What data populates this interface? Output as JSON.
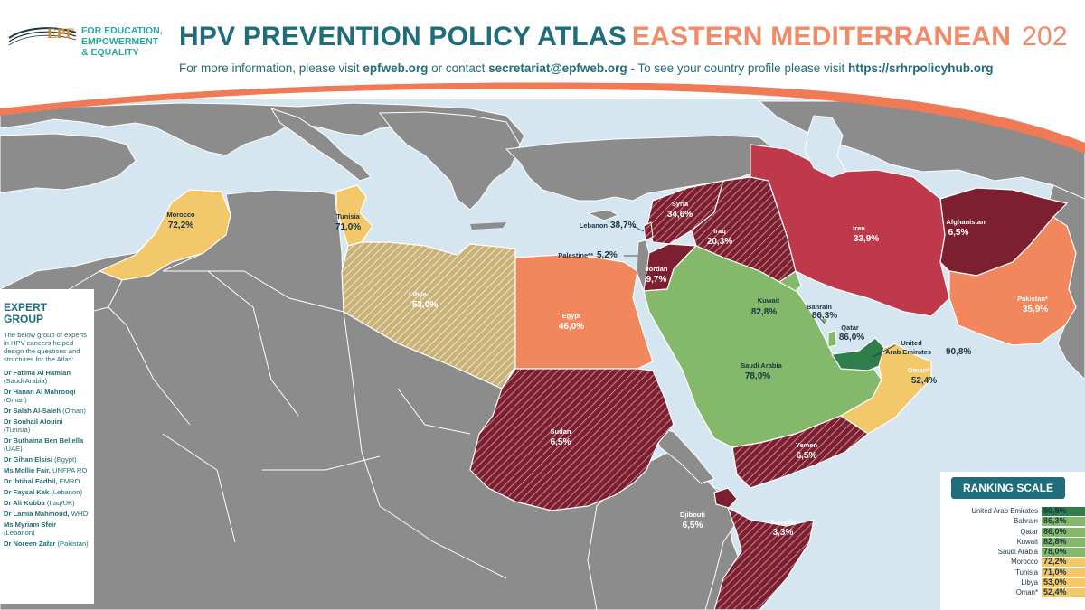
{
  "header": {
    "logo_text": "EPF",
    "tagline": [
      "FOR EDUCATION,",
      "EMPOWERMENT",
      "& EQUALITY"
    ],
    "title_part1": "HPV PREVENTION POLICY ATLAS",
    "title_part2": "EASTERN MEDITERRANEAN",
    "title_year": "202",
    "info_prefix": "For more information, please visit ",
    "info_site": "epfweb.org",
    "info_mid": " or contact ",
    "info_email": "secretariat@epfweb.org",
    "info_mid2": " - To see your country profile please visit ",
    "info_site2": "https://srhrpolicyhub.org"
  },
  "colors": {
    "dark_green": "#2e7d4a",
    "light_green": "#84b86a",
    "yellow": "#f2c86a",
    "orange": "#f2875e",
    "red": "#c0394b",
    "dark_red": "#7c1f30",
    "grey_land": "#8c8c8c",
    "sea": "#d5e6f1",
    "brand_teal": "#1f6d7a",
    "brand_orange": "#f08a68"
  },
  "countries": [
    {
      "name": "Morocco",
      "value": "72,2%"
    },
    {
      "name": "Tunisia",
      "value": "71,0%"
    },
    {
      "name": "Libya",
      "value": "53,0%"
    },
    {
      "name": "Egypt",
      "value": "46,0%"
    },
    {
      "name": "Lebanon",
      "value": "38,7%"
    },
    {
      "name": "Palestine**",
      "value": "5,2%"
    },
    {
      "name": "Syria",
      "value": "34,6%"
    },
    {
      "name": "Iraq",
      "value": "20,3%"
    },
    {
      "name": "Jordan",
      "value": "9,7%"
    },
    {
      "name": "Iran",
      "value": "33,9%"
    },
    {
      "name": "Afghanistan",
      "value": "6,5%"
    },
    {
      "name": "Kuwait",
      "value": "82,8%"
    },
    {
      "name": "Bahrain",
      "value": "86,3%"
    },
    {
      "name": "Qatar",
      "value": "86,0%"
    },
    {
      "name": "United Arab Emirates",
      "value": "90,8%"
    },
    {
      "name": "Saudi Arabia",
      "value": "78,0%"
    },
    {
      "name": "Pakistan*",
      "value": "35,9%"
    },
    {
      "name": "Oman*",
      "value": "52,4%"
    },
    {
      "name": "Sudan",
      "value": "6,5%"
    },
    {
      "name": "Yemen",
      "value": "6,5%"
    },
    {
      "name": "Djibouti",
      "value": "6,5%"
    },
    {
      "name": "Somalia",
      "value": "3,3%"
    }
  ],
  "expert_group": {
    "title_line1": "EXPERT",
    "title_line2": "GROUP",
    "intro": "The below group of experts in HPV cancers helped design the questions and structures for the Atlas:",
    "members": [
      {
        "name": "Dr Fatima Al Hamlan",
        "affil": "(Saudi Arabia)"
      },
      {
        "name": "Dr Hanan Al Mahrooqi",
        "affil": "(Oman)"
      },
      {
        "name": "Dr Salah Al-Saleh",
        "affil": "(Oman)"
      },
      {
        "name": "Dr Souhail Alouini",
        "affil": "(Tunisia)"
      },
      {
        "name": "Dr Buthaina Ben Bellella",
        "affil": "(UAE)"
      },
      {
        "name": "Dr Gihan Elsisi",
        "affil": "(Egypt)"
      },
      {
        "name": "Ms Mollie Fair,",
        "affil": "UNFPA RO"
      },
      {
        "name": "Dr Ibtihal Fadhil,",
        "affil": "EMRO"
      },
      {
        "name": "Dr Faysal Kak",
        "affil": "(Lebanon)"
      },
      {
        "name": "Dr Ali Kubba",
        "affil": "(Iraq/UK)"
      },
      {
        "name": "Dr Lamia Mahmoud,",
        "affil": "WHO"
      },
      {
        "name": "Ms Myriam Sfeir",
        "affil": "(Lebanon)"
      },
      {
        "name": "Dr Noreen Zafar",
        "affil": "(Pakistan)"
      }
    ]
  },
  "ranking": {
    "title": "RANKING SCALE",
    "rows": [
      {
        "name": "United Arab Emirates",
        "value": "90,8%",
        "color": "#2e7d4a"
      },
      {
        "name": "Bahrain",
        "value": "86,3%",
        "color": "#84b86a"
      },
      {
        "name": "Qatar",
        "value": "86,0%",
        "color": "#84b86a"
      },
      {
        "name": "Kuwait",
        "value": "82,8%",
        "color": "#84b86a"
      },
      {
        "name": "Saudi Arabia",
        "value": "78,0%",
        "color": "#84b86a"
      },
      {
        "name": "Morocco",
        "value": "72,2%",
        "color": "#f2c86a"
      },
      {
        "name": "Tunisia",
        "value": "71,0%",
        "color": "#f2c86a"
      },
      {
        "name": "Libya",
        "value": "53,0%",
        "color": "#f2c86a"
      },
      {
        "name": "Oman*",
        "value": "52,4%",
        "color": "#f2c86a"
      }
    ]
  }
}
